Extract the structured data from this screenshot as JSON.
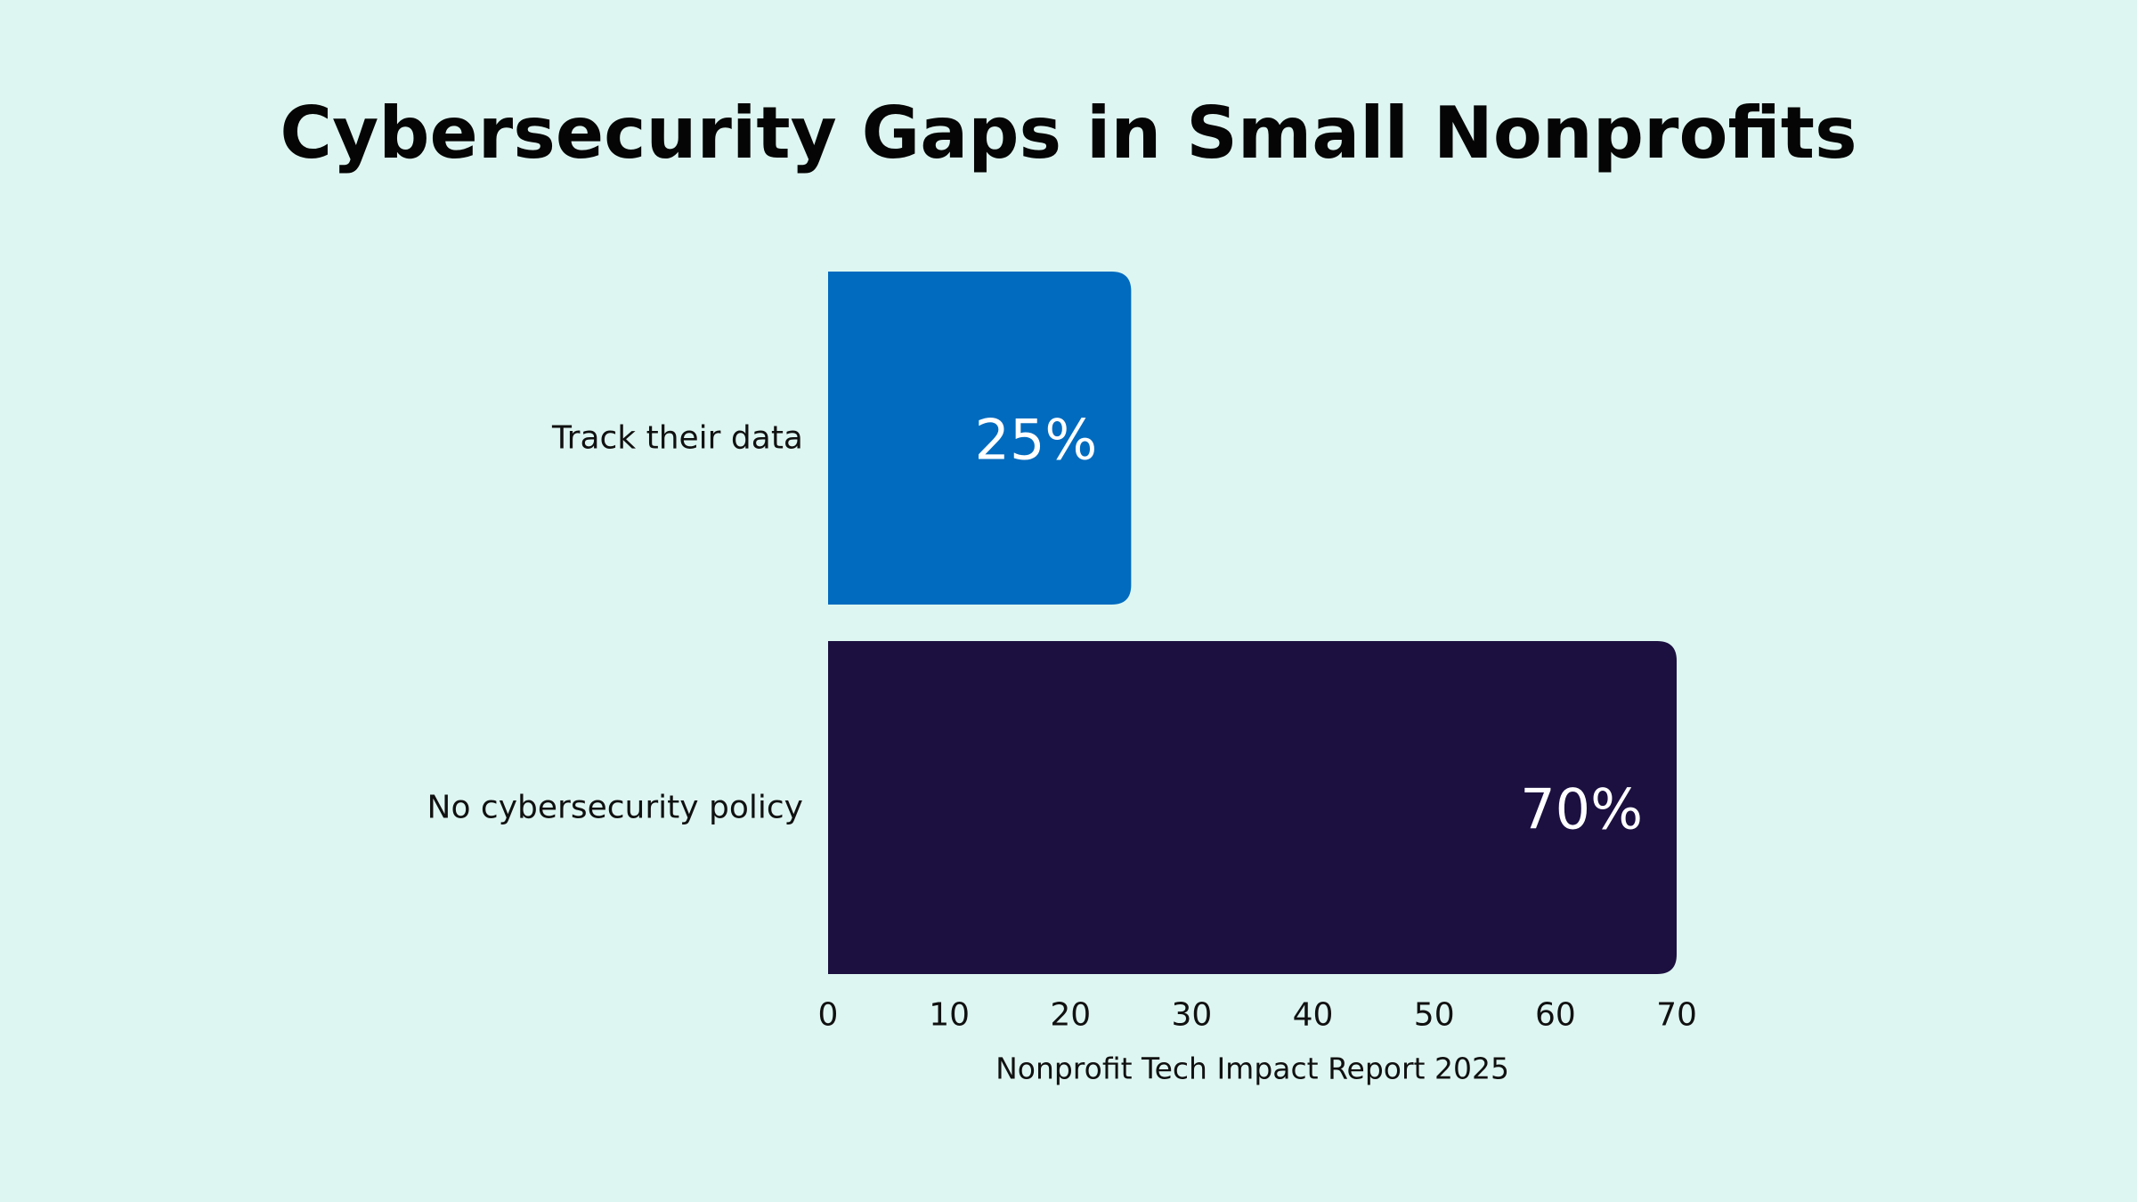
{
  "chart_data": {
    "type": "bar",
    "orientation": "horizontal",
    "title": "Cybersecurity Gaps in Small Nonprofits",
    "xlabel": "Nonprofit Tech Impact Report 2025",
    "ylabel": "",
    "categories": [
      "Track their data",
      "No cybersecurity policy"
    ],
    "values": [
      25,
      70
    ],
    "data_labels": [
      "25%",
      "70%"
    ],
    "colors": [
      "#006bbf",
      "#1b1040"
    ],
    "xlim": [
      0,
      70
    ],
    "xticks": [
      0,
      10,
      20,
      30,
      40,
      50,
      60,
      70
    ],
    "grid": false,
    "legend": "none"
  },
  "theme": {
    "background": "#def6f1"
  }
}
